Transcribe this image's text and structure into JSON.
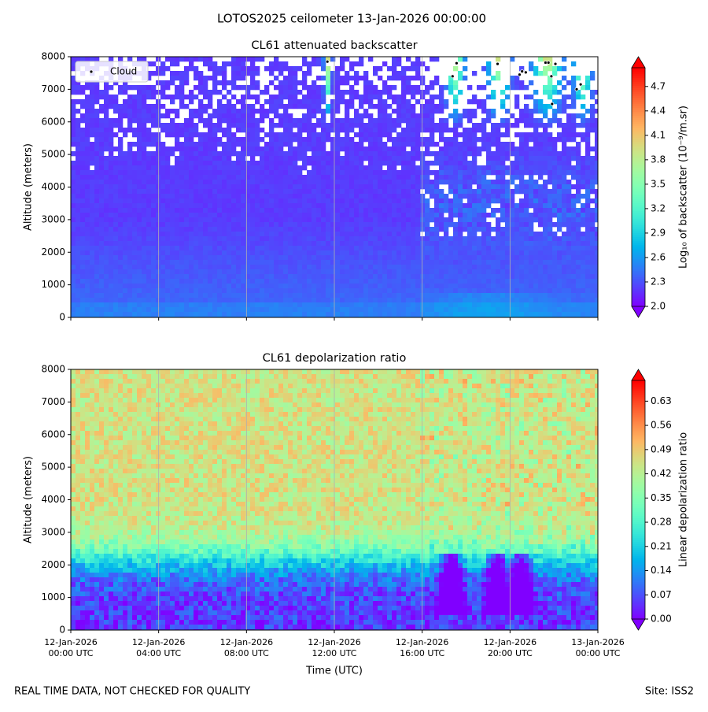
{
  "title": "LOTOS2025 ceilometer 13-Jan-2026 00:00:00",
  "footer_left": "REAL TIME DATA, NOT CHECKED FOR QUALITY",
  "footer_right": "Site: ISS2",
  "chart_data": [
    {
      "type": "heatmap",
      "title": "CL61 attenuated backscatter",
      "ylabel": "Altitude (meters)",
      "xlim": [
        "2026-01-12T00:00",
        "2026-01-13T00:00"
      ],
      "xticks": [
        "2026-01-12T00:00",
        "2026-01-12T04:00",
        "2026-01-12T08:00",
        "2026-01-12T12:00",
        "2026-01-12T16:00",
        "2026-01-12T20:00",
        "2026-01-13T00:00"
      ],
      "ylim": [
        0,
        8000
      ],
      "yticks": [
        0,
        1000,
        2000,
        3000,
        4000,
        5000,
        6000,
        7000,
        8000
      ],
      "grid": true,
      "colormap": "rainbow",
      "legend": "upper left",
      "colorbar": {
        "label": "Log₁₀ of backscatter (10⁻⁹/m.sr)",
        "lim": [
          2.0,
          4.93
        ],
        "ticks": [
          {
            "value": 2.0,
            "label": "2.0"
          },
          2.3,
          2.6,
          2.9,
          3.2,
          3.5,
          3.8,
          4.1,
          4.4,
          4.7
        ]
      },
      "series": [
        {
          "name": "Cloud",
          "color": "#000000",
          "x": [
            "2026-01-12T11:41",
            "2026-01-12T17:23",
            "2026-01-12T17:34",
            "2026-01-12T19:26",
            "2026-01-12T20:26",
            "2026-01-12T20:33",
            "2026-01-12T20:43",
            "2026-01-12T21:37",
            "2026-01-12T21:45",
            "2026-01-12T21:53",
            "2026-01-12T21:55",
            "2026-01-12T22:04",
            "2026-01-12T23:02",
            "2026-01-12T23:13"
          ],
          "y": [
            7850,
            7400,
            7800,
            7780,
            7450,
            7550,
            7520,
            7820,
            7820,
            7400,
            6550,
            7780,
            7000,
            7150
          ]
        }
      ]
    },
    {
      "type": "heatmap",
      "title": "CL61 depolarization ratio",
      "ylabel": "Altitude (meters)",
      "xlabel": "Time (UTC)",
      "xlim": [
        "2026-01-12T00:00",
        "2026-01-13T00:00"
      ],
      "xticks": [
        {
          "value": "2026-01-12T00:00",
          "label": "12-Jan-2026\n00:00 UTC"
        },
        {
          "value": "2026-01-12T04:00",
          "label": "12-Jan-2026\n04:00 UTC"
        },
        {
          "value": "2026-01-12T08:00",
          "label": "12-Jan-2026\n08:00 UTC"
        },
        {
          "value": "2026-01-12T12:00",
          "label": "12-Jan-2026\n12:00 UTC"
        },
        {
          "value": "2026-01-12T16:00",
          "label": "12-Jan-2026\n16:00 UTC"
        },
        {
          "value": "2026-01-12T20:00",
          "label": "12-Jan-2026\n20:00 UTC"
        },
        {
          "value": "2026-01-13T00:00",
          "label": "13-Jan-2026\n00:00 UTC"
        }
      ],
      "ylim": [
        0,
        8000
      ],
      "yticks": [
        0,
        1000,
        2000,
        3000,
        4000,
        5000,
        6000,
        7000,
        8000
      ],
      "grid": true,
      "colormap": "rainbow",
      "colorbar": {
        "label": "Linear depolarization ratio",
        "lim": [
          0,
          0.69
        ],
        "ticks": [
          {
            "value": 0,
            "label": "0.00"
          },
          0.07,
          0.14,
          0.21,
          0.28,
          0.35,
          0.42,
          0.49,
          0.56,
          0.63
        ]
      }
    }
  ]
}
